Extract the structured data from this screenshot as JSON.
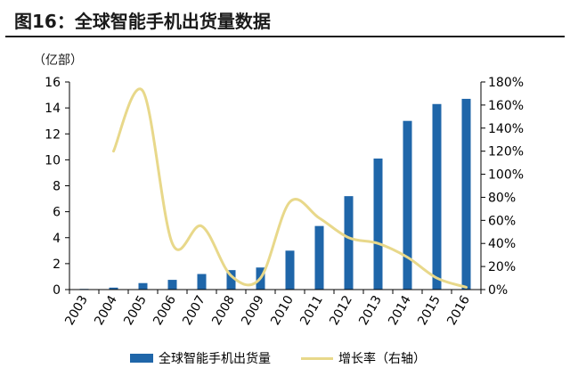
{
  "title": "图16：全球智能手机出货量数据",
  "unit": "（亿部）",
  "chart_data": {
    "type": "bar",
    "title": "图16：全球智能手机出货量数据",
    "categories": [
      "2003",
      "2004",
      "2005",
      "2006",
      "2007",
      "2008",
      "2009",
      "2010",
      "2011",
      "2012",
      "2013",
      "2014",
      "2015",
      "2016"
    ],
    "series": [
      {
        "name": "全球智能手机出货量",
        "type": "bar",
        "axis": "left",
        "values": [
          0.05,
          0.15,
          0.5,
          0.75,
          1.2,
          1.5,
          1.7,
          3.0,
          4.9,
          7.2,
          10.1,
          13.0,
          14.3,
          14.7
        ]
      },
      {
        "name": "增长率（右轴）",
        "type": "line",
        "axis": "right",
        "smooth": true,
        "values": [
          null,
          120,
          172,
          40,
          55,
          12,
          10,
          76,
          62,
          45,
          40,
          28,
          10,
          2
        ]
      }
    ],
    "ylabel": "（亿部）",
    "ylim": [
      0,
      16
    ],
    "y_ticks": [
      0,
      2,
      4,
      6,
      8,
      10,
      12,
      14,
      16
    ],
    "y2lim": [
      0,
      180
    ],
    "y2_ticks": [
      "0%",
      "20%",
      "40%",
      "60%",
      "80%",
      "100%",
      "120%",
      "140%",
      "160%",
      "180%"
    ],
    "legend_position": "bottom",
    "colors": {
      "bar": "#1f66a9",
      "line": "#e8d88a",
      "axis": "#000000"
    }
  }
}
